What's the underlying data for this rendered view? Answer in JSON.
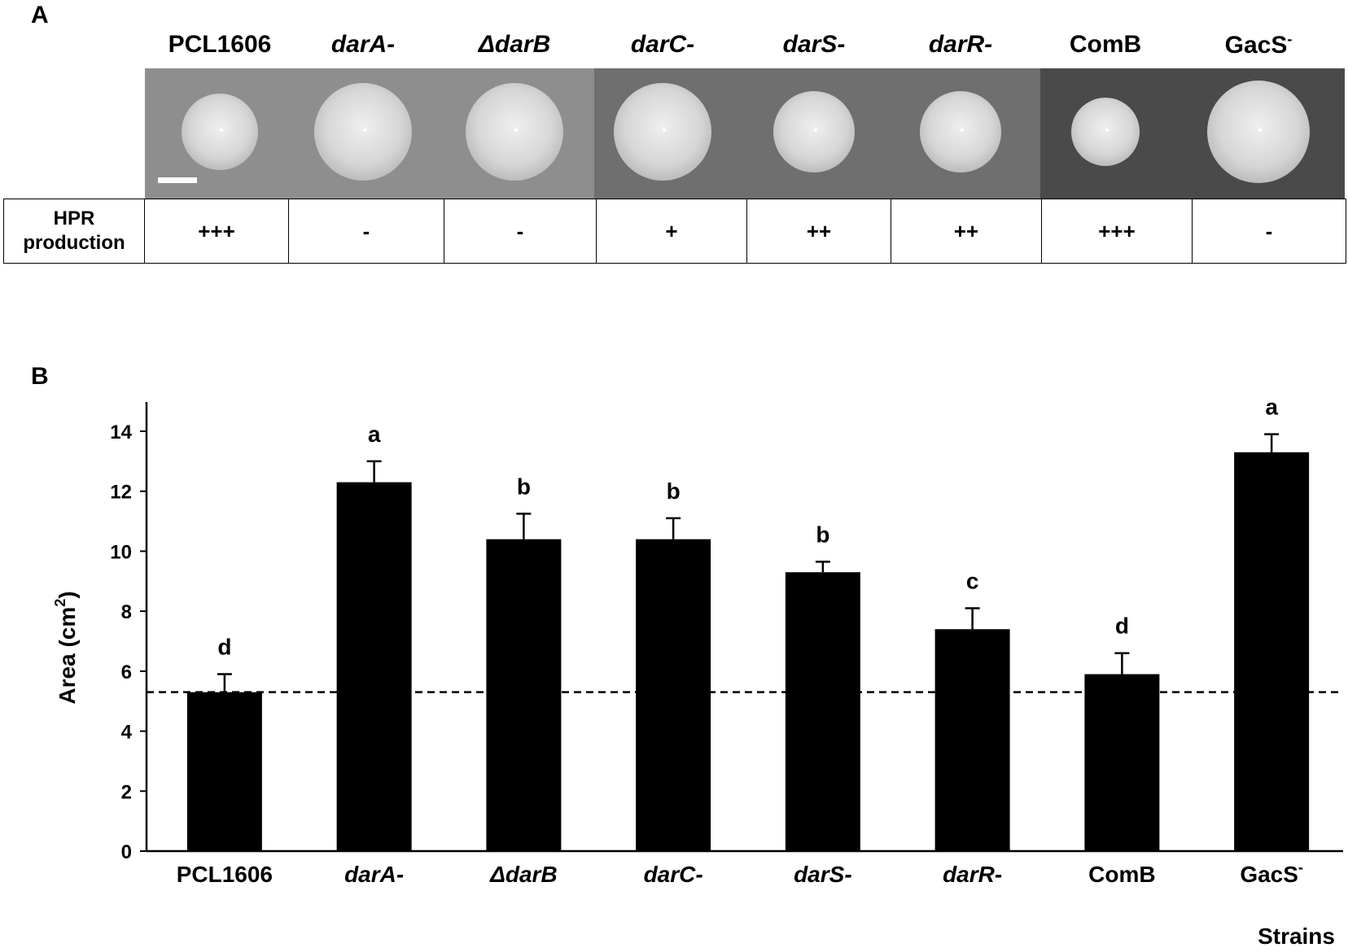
{
  "panel_a": {
    "letter": "A",
    "strains": [
      {
        "name": "PCL1606",
        "italic": false,
        "sup": ""
      },
      {
        "name": "darA-",
        "italic": true,
        "sup": ""
      },
      {
        "name": "ΔdarB",
        "italic": true,
        "sup": ""
      },
      {
        "name": "darC-",
        "italic": true,
        "sup": ""
      },
      {
        "name": "darS-",
        "italic": true,
        "sup": ""
      },
      {
        "name": "darR-",
        "italic": true,
        "sup": ""
      },
      {
        "name": "ComB",
        "italic": false,
        "sup": ""
      },
      {
        "name": "GacS",
        "italic": false,
        "sup": "-"
      }
    ],
    "hpr_label_line1": "HPR",
    "hpr_label_line2": "production",
    "hpr_values": [
      "+++",
      "-",
      "-",
      "+",
      "++",
      "++",
      "+++",
      "-"
    ],
    "photo_colors": {
      "plate_light": "#8e8e8e",
      "plate_mid": "#6f6f6f",
      "plate_dark": "#4a4a4a",
      "colony": "#d9d9d9",
      "scale_bar": "#ffffff"
    }
  },
  "panel_b": {
    "letter": "B"
  },
  "chart_data": {
    "type": "bar",
    "categories": [
      "PCL1606",
      "darA-",
      "ΔdarB",
      "darC-",
      "darS-",
      "darR-",
      "ComB",
      "GacS-"
    ],
    "category_display": [
      {
        "name": "PCL1606",
        "italic": false,
        "sup": ""
      },
      {
        "name": "darA-",
        "italic": true,
        "sup": ""
      },
      {
        "name": "ΔdarB",
        "italic": true,
        "sup": ""
      },
      {
        "name": "darC-",
        "italic": true,
        "sup": ""
      },
      {
        "name": "darS-",
        "italic": true,
        "sup": ""
      },
      {
        "name": "darR-",
        "italic": true,
        "sup": ""
      },
      {
        "name": "ComB",
        "italic": false,
        "sup": ""
      },
      {
        "name": "GacS",
        "italic": false,
        "sup": "-"
      }
    ],
    "values": [
      5.3,
      12.3,
      10.4,
      10.4,
      9.3,
      7.4,
      5.9,
      13.3
    ],
    "error": [
      0.6,
      0.7,
      0.85,
      0.7,
      0.35,
      0.7,
      0.7,
      0.6
    ],
    "significance": [
      "d",
      "a",
      "b",
      "b",
      "b",
      "c",
      "d",
      "a"
    ],
    "reference_line": 5.3,
    "ylabel": "Area (cm",
    "ylabel_sup": "2",
    "ylabel_end": ")",
    "xlabel": "Strains",
    "ylim": [
      0,
      14
    ],
    "yticks": [
      0,
      2,
      4,
      6,
      8,
      10,
      12,
      14
    ],
    "bar_color": "#000000",
    "grid": false
  }
}
